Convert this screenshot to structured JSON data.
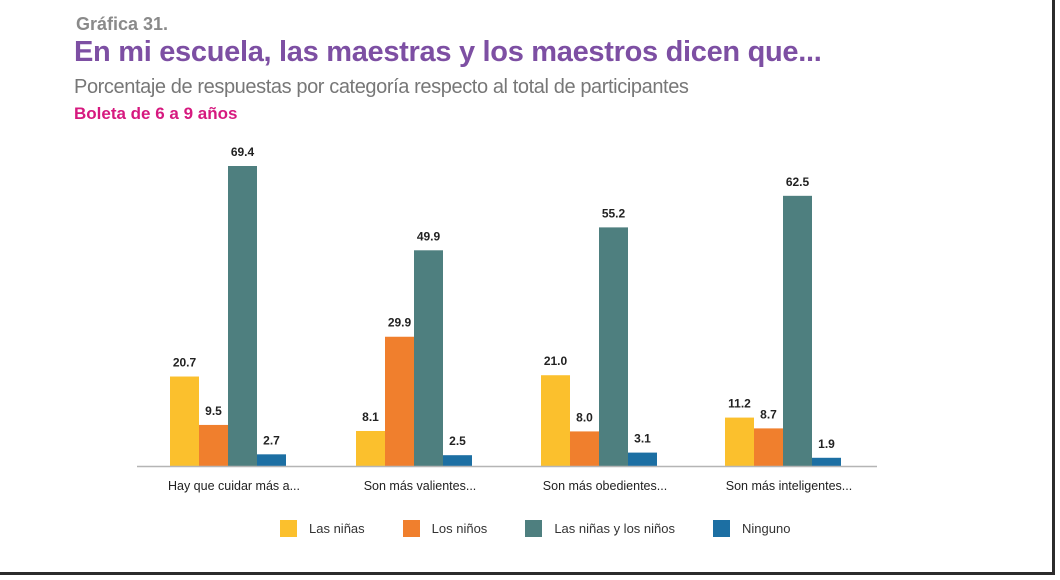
{
  "header": {
    "figure_label": "Gráfica 31.",
    "title": "En mi escuela, las maestras y los maestros dicen que...",
    "subtitle": "Porcentaje de respuestas por categoría respecto al total de participantes",
    "subtitle2": "Boleta de 6 a 9 años"
  },
  "colors": {
    "las_ninas": "#fbc02d",
    "los_ninos": "#f07f2d",
    "ambos": "#4e7f7f",
    "ninguno": "#1c6fa3",
    "title": "#7d4fa3",
    "accent": "#d6197f"
  },
  "chart_data": {
    "type": "bar",
    "title": "En mi escuela, las maestras y los maestros dicen que...",
    "xlabel": "",
    "ylabel": "",
    "ylim": [
      0,
      72
    ],
    "grid": false,
    "legend_position": "bottom",
    "categories": [
      "Hay que cuidar más a...",
      "Son más valientes...",
      "Son más obedientes...",
      "Son más inteligentes..."
    ],
    "series": [
      {
        "name": "Las niñas",
        "color": "#fbc02d",
        "values": [
          20.7,
          8.1,
          21.0,
          11.2
        ],
        "labels": [
          "20.7",
          "8.1",
          "21.0",
          "11.2"
        ]
      },
      {
        "name": "Los niños",
        "color": "#f07f2d",
        "values": [
          9.5,
          29.9,
          8.0,
          8.7
        ],
        "labels": [
          "9.5",
          "29.9",
          "8.0",
          "8.7"
        ]
      },
      {
        "name": "Las niñas y los niños",
        "color": "#4e7f7f",
        "values": [
          69.4,
          49.9,
          55.2,
          62.5
        ],
        "labels": [
          "69.4",
          "49.9",
          "55.2",
          "62.5"
        ]
      },
      {
        "name": "Ninguno",
        "color": "#1c6fa3",
        "values": [
          2.7,
          2.5,
          3.1,
          1.9
        ],
        "labels": [
          "2.7",
          "2.5",
          "3.1",
          "1.9"
        ]
      }
    ]
  }
}
